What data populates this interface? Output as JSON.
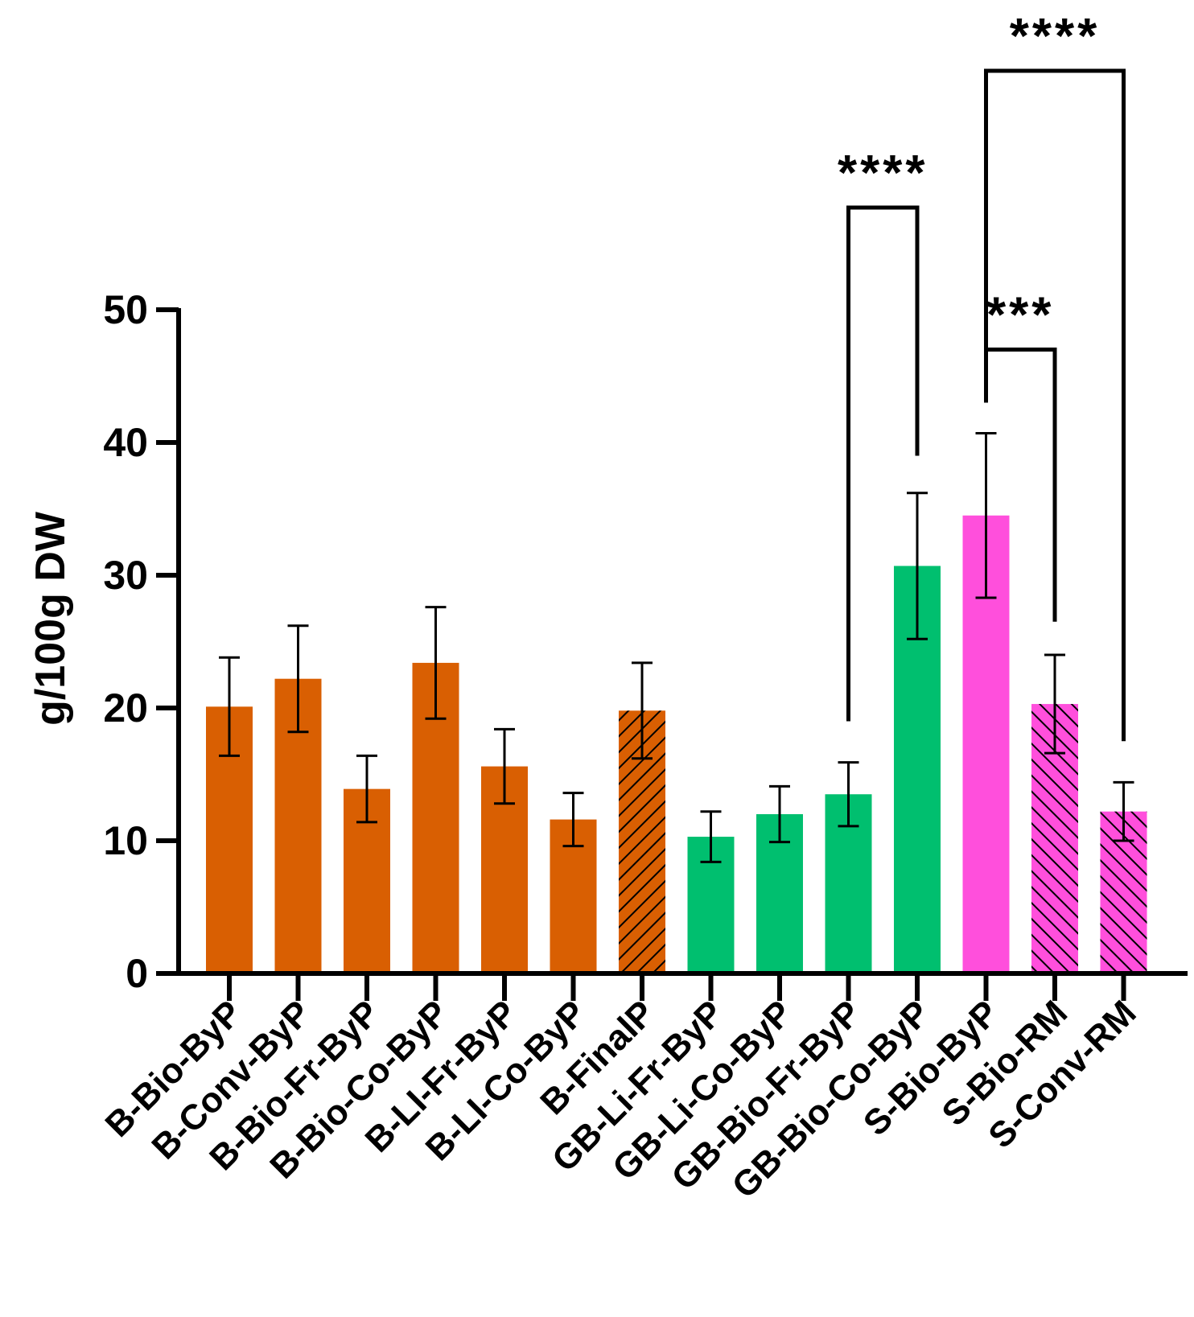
{
  "chart_data": {
    "type": "bar",
    "title": "",
    "xlabel": "",
    "ylabel": "g/100g DW",
    "ylim": [
      0,
      50
    ],
    "yticks": [
      0,
      10,
      20,
      30,
      40,
      50
    ],
    "grid": false,
    "legend": "none",
    "categories": [
      "B-Bio-ByP",
      "B-Conv-ByP",
      "B-Bio-Fr-ByP",
      "B-Bio-Co-ByP",
      "B-LI-Fr-ByP",
      "B-LI-Co-ByP",
      "B-FinalP",
      "GB-Li-Fr-ByP",
      "GB-Li-Co-ByP",
      "GB-Bio-Fr-ByP",
      "GB-Bio-Co-ByP",
      "S-Bio-ByP",
      "S-Bio-RM",
      "S-Conv-RM"
    ],
    "values": [
      20.1,
      22.2,
      13.9,
      23.4,
      15.6,
      11.6,
      19.8,
      10.3,
      12.0,
      13.5,
      30.7,
      34.5,
      20.3,
      12.2
    ],
    "errors": [
      3.7,
      4.0,
      2.5,
      4.2,
      2.8,
      2.0,
      3.6,
      1.9,
      2.1,
      2.4,
      5.5,
      6.2,
      3.7,
      2.2
    ],
    "colors": [
      "#d95f02",
      "#d95f02",
      "#d95f02",
      "#d95f02",
      "#d95f02",
      "#d95f02",
      "#d95f02",
      "#00bf6f",
      "#00bf6f",
      "#00bf6f",
      "#00bf6f",
      "#ff4fdc",
      "#ff4fdc",
      "#ff4fdc"
    ],
    "hatch": [
      "none",
      "none",
      "none",
      "none",
      "none",
      "none",
      "fwd",
      "none",
      "none",
      "none",
      "none",
      "none",
      "back",
      "back"
    ],
    "significance": [
      {
        "from": 9,
        "to": 10,
        "label": "****",
        "top": 57.7,
        "left_end": 19.0,
        "right_end": 39.0
      },
      {
        "from": 11,
        "to": 13,
        "label": "****",
        "top": 68.0,
        "left_end": 43.5,
        "right_end": 17.5
      },
      {
        "from": 11,
        "to": 12,
        "label": "***",
        "top": 47.0,
        "left_end": 43.0,
        "right_end": 26.5
      }
    ]
  }
}
